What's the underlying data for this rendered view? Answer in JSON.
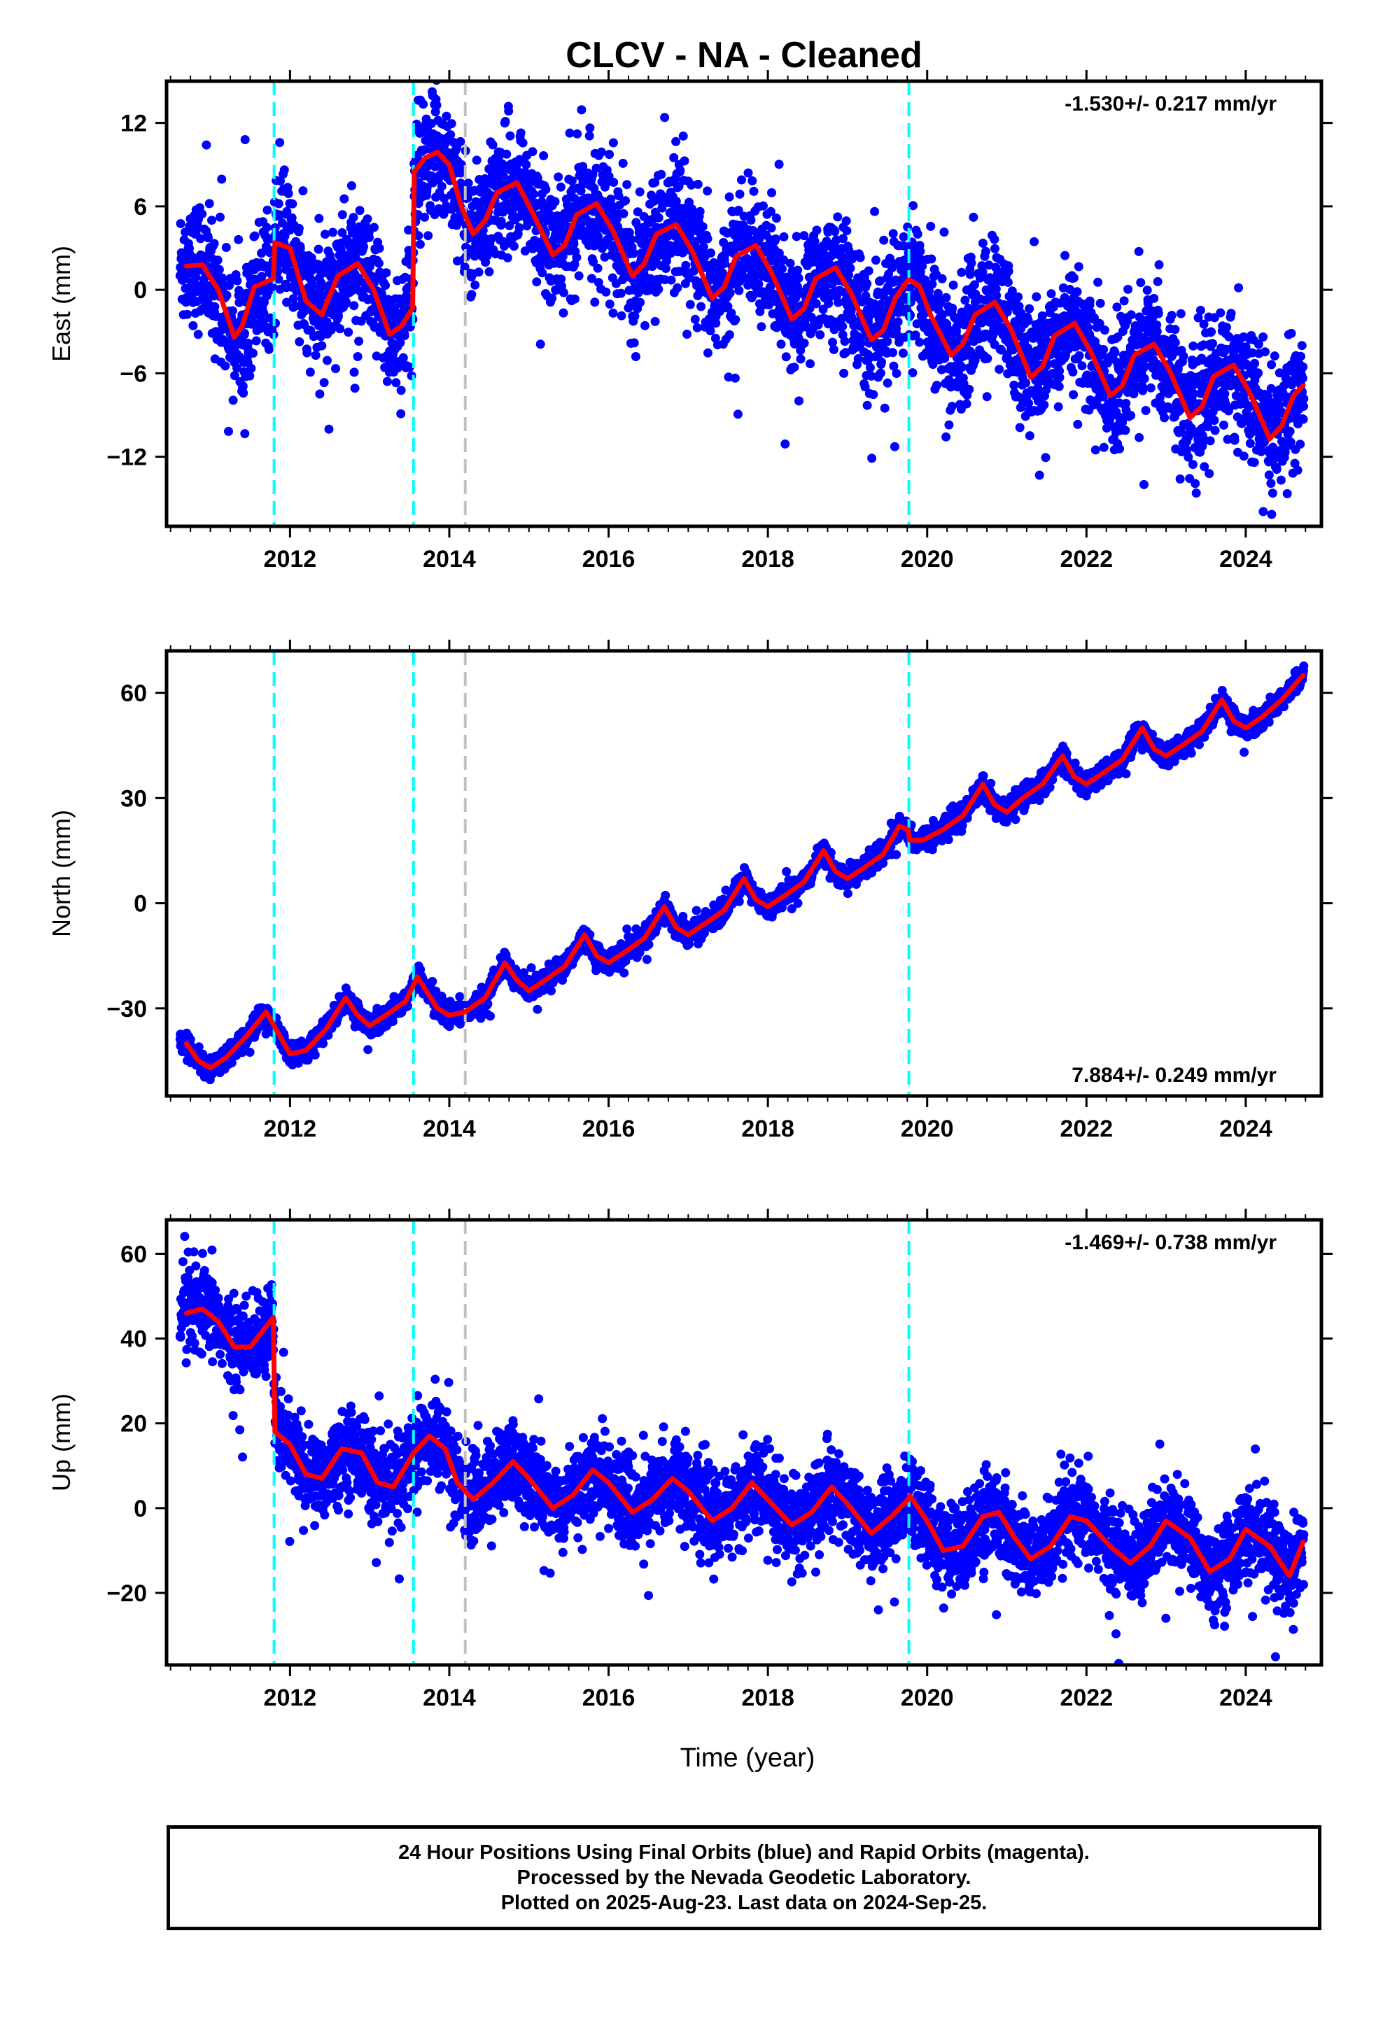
{
  "title": "CLCV  - NA - Cleaned",
  "xlabel": "Time (year)",
  "footer": {
    "line1": "24 Hour Positions Using Final Orbits (blue) and Rapid Orbits (magenta).",
    "line2": "Processed by the Nevada Geodetic Laboratory.",
    "line3": "Plotted on 2025-Aug-23. Last data on 2024-Sep-25."
  },
  "colors": {
    "points": "#0000ff",
    "model": "#ff0000",
    "equipment_change": "#00ffff",
    "earthquake": "#c0c0c0"
  },
  "chart_data": [
    {
      "type": "scatter",
      "panel": "east",
      "ylabel": "East (mm)",
      "rate_label": "-1.530+/- 0.217 mm/yr",
      "rate_position": "top-right",
      "xlim": [
        2010.45,
        2024.95
      ],
      "ylim": [
        -17,
        15
      ],
      "yticks": [
        -12,
        -6,
        0,
        6,
        12
      ],
      "xticks": [
        2012,
        2014,
        2016,
        2018,
        2020,
        2022,
        2024
      ],
      "vlines_equipment": [
        2011.8,
        2013.55,
        2019.77
      ],
      "vlines_earthquake": [
        2014.2
      ],
      "model": {
        "x": [
          2010.7,
          2010.9,
          2011.1,
          2011.3,
          2011.4,
          2011.55,
          2011.79,
          2011.81,
          2012.0,
          2012.2,
          2012.4,
          2012.6,
          2012.85,
          2013.05,
          2013.25,
          2013.4,
          2013.54,
          2013.56,
          2013.7,
          2013.85,
          2014.0,
          2014.15,
          2014.3,
          2014.45,
          2014.6,
          2014.85,
          2015.05,
          2015.3,
          2015.45,
          2015.6,
          2015.85,
          2016.05,
          2016.3,
          2016.45,
          2016.6,
          2016.85,
          2017.05,
          2017.3,
          2017.45,
          2017.6,
          2017.85,
          2018.05,
          2018.3,
          2018.45,
          2018.6,
          2018.85,
          2019.05,
          2019.3,
          2019.45,
          2019.6,
          2019.76,
          2019.78,
          2019.9,
          2020.05,
          2020.3,
          2020.45,
          2020.6,
          2020.85,
          2021.05,
          2021.3,
          2021.45,
          2021.6,
          2021.85,
          2022.05,
          2022.3,
          2022.45,
          2022.6,
          2022.85,
          2023.05,
          2023.3,
          2023.45,
          2023.6,
          2023.85,
          2024.05,
          2024.3,
          2024.45,
          2024.6,
          2024.72
        ],
        "y": [
          1.7,
          1.8,
          0.0,
          -3.4,
          -2.6,
          0.2,
          0.8,
          3.4,
          3.0,
          -0.8,
          -1.8,
          1.0,
          1.9,
          0.0,
          -3.2,
          -2.6,
          -1.3,
          8.5,
          9.5,
          9.9,
          9.0,
          6.0,
          4.0,
          5.0,
          7.0,
          7.7,
          5.5,
          2.5,
          3.2,
          5.4,
          6.2,
          4.3,
          1.0,
          1.9,
          4.0,
          4.7,
          2.8,
          -0.6,
          0.2,
          2.4,
          3.2,
          1.2,
          -2.1,
          -1.4,
          0.8,
          1.6,
          -0.3,
          -3.6,
          -2.9,
          -0.6,
          0.7,
          0.7,
          0.3,
          -1.9,
          -4.7,
          -3.9,
          -1.8,
          -0.9,
          -2.8,
          -6.3,
          -5.5,
          -3.3,
          -2.4,
          -4.4,
          -7.6,
          -6.9,
          -4.7,
          -3.9,
          -5.9,
          -9.2,
          -8.4,
          -6.2,
          -5.4,
          -7.4,
          -10.7,
          -9.8,
          -7.6,
          -6.9
        ]
      },
      "cloud_spread": 2.2
    },
    {
      "type": "scatter",
      "panel": "north",
      "ylabel": "North (mm)",
      "rate_label": "7.884+/- 0.249 mm/yr",
      "rate_position": "bottom-right",
      "xlim": [
        2010.45,
        2024.95
      ],
      "ylim": [
        -55,
        72
      ],
      "yticks": [
        -30,
        0,
        30,
        60
      ],
      "xticks": [
        2012,
        2014,
        2016,
        2018,
        2020,
        2022,
        2024
      ],
      "vlines_equipment": [
        2011.8,
        2013.55,
        2019.77
      ],
      "vlines_earthquake": [
        2014.2
      ],
      "model": {
        "x": [
          2010.7,
          2010.85,
          2011.0,
          2011.2,
          2011.45,
          2011.7,
          2011.85,
          2012.0,
          2012.2,
          2012.45,
          2012.7,
          2012.85,
          2013.0,
          2013.2,
          2013.45,
          2013.6,
          2013.85,
          2014.0,
          2014.2,
          2014.45,
          2014.7,
          2014.85,
          2015.0,
          2015.2,
          2015.45,
          2015.7,
          2015.85,
          2016.0,
          2016.2,
          2016.45,
          2016.7,
          2016.85,
          2017.0,
          2017.2,
          2017.45,
          2017.7,
          2017.85,
          2018.0,
          2018.2,
          2018.45,
          2018.7,
          2018.85,
          2019.0,
          2019.2,
          2019.45,
          2019.65,
          2019.76,
          2019.78,
          2019.95,
          2020.2,
          2020.45,
          2020.7,
          2020.85,
          2021.0,
          2021.2,
          2021.45,
          2021.7,
          2021.85,
          2022.0,
          2022.2,
          2022.45,
          2022.7,
          2022.85,
          2023.0,
          2023.2,
          2023.45,
          2023.7,
          2023.85,
          2024.0,
          2024.2,
          2024.45,
          2024.72
        ],
        "y": [
          -40,
          -45,
          -47,
          -44,
          -38,
          -31,
          -37,
          -43,
          -42,
          -36,
          -27,
          -32,
          -35,
          -32,
          -28,
          -21,
          -30,
          -32,
          -31,
          -27,
          -17,
          -22,
          -25,
          -22,
          -18,
          -9,
          -15,
          -17,
          -14,
          -10,
          -1,
          -7,
          -9,
          -6,
          -2,
          7,
          1,
          -1,
          2,
          6,
          15,
          9,
          7,
          10,
          14,
          22,
          21,
          18,
          18,
          21,
          25,
          34,
          28,
          26,
          30,
          34,
          42,
          36,
          34,
          37,
          41,
          50,
          44,
          42,
          45,
          49,
          58,
          52,
          50,
          53,
          58,
          65
        ]
      },
      "cloud_spread": 1.5
    },
    {
      "type": "scatter",
      "panel": "up",
      "ylabel": "Up (mm)",
      "rate_label": "-1.469+/- 0.738 mm/yr",
      "rate_position": "top-right",
      "xlim": [
        2010.45,
        2024.95
      ],
      "ylim": [
        -37,
        68
      ],
      "yticks": [
        -20,
        0,
        20,
        40,
        60
      ],
      "xticks": [
        2012,
        2014,
        2016,
        2018,
        2020,
        2022,
        2024
      ],
      "vlines_equipment": [
        2011.8,
        2013.55,
        2019.77
      ],
      "vlines_earthquake": [
        2014.2
      ],
      "model": {
        "x": [
          2010.7,
          2010.9,
          2011.1,
          2011.3,
          2011.5,
          2011.79,
          2011.81,
          2012.0,
          2012.2,
          2012.4,
          2012.65,
          2012.9,
          2013.1,
          2013.3,
          2013.55,
          2013.75,
          2013.95,
          2014.1,
          2014.3,
          2014.55,
          2014.8,
          2015.0,
          2015.3,
          2015.55,
          2015.8,
          2016.0,
          2016.3,
          2016.55,
          2016.8,
          2017.0,
          2017.3,
          2017.55,
          2017.8,
          2018.0,
          2018.3,
          2018.55,
          2018.8,
          2019.0,
          2019.3,
          2019.55,
          2019.76,
          2019.78,
          2020.0,
          2020.2,
          2020.45,
          2020.7,
          2020.9,
          2021.1,
          2021.3,
          2021.55,
          2021.8,
          2022.0,
          2022.3,
          2022.55,
          2022.8,
          2023.0,
          2023.3,
          2023.55,
          2023.8,
          2024.0,
          2024.3,
          2024.55,
          2024.72
        ],
        "y": [
          46,
          47,
          44,
          38,
          38,
          45,
          18,
          15,
          8,
          7,
          14,
          13,
          6,
          5,
          13,
          17,
          14,
          6,
          2,
          6,
          11,
          7,
          0,
          3,
          9,
          6,
          -1,
          2,
          7,
          4,
          -3,
          0,
          6,
          2,
          -4,
          -1,
          5,
          1,
          -6,
          -2,
          2,
          3,
          -3,
          -10,
          -9,
          -2,
          -1,
          -7,
          -12,
          -9,
          -2,
          -3,
          -9,
          -13,
          -9,
          -3,
          -7,
          -15,
          -12,
          -5,
          -9,
          -16,
          -8
        ]
      },
      "cloud_spread": 5.0
    }
  ]
}
